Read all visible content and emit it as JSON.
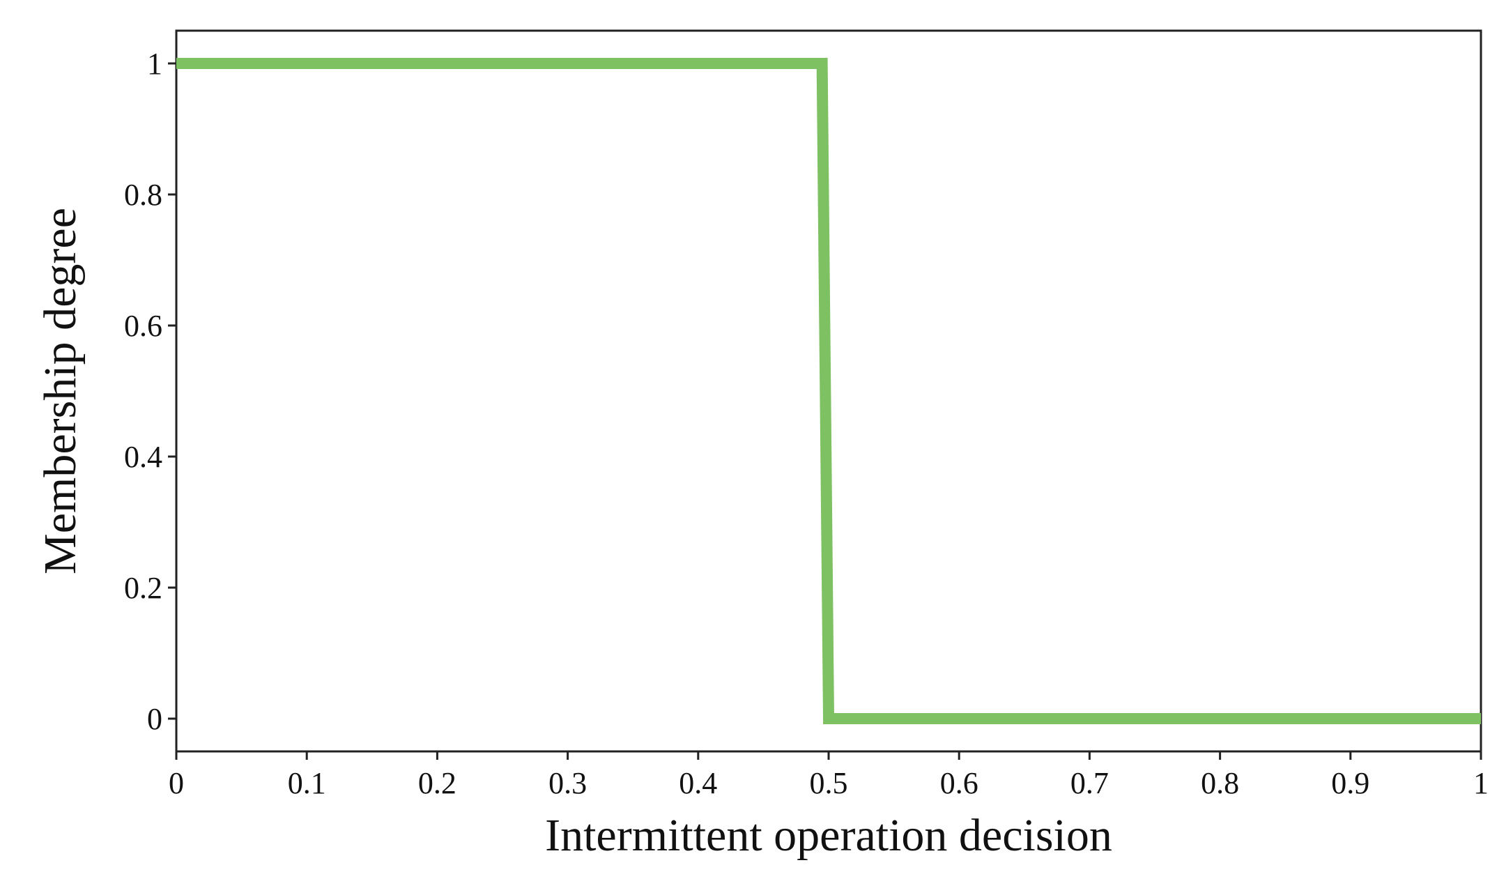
{
  "chart_data": {
    "type": "line",
    "x_label": "Intermittent operation decision",
    "y_label": "Membership degree",
    "x": [
      0,
      0.495,
      0.5,
      1
    ],
    "series": [
      {
        "color": "#7dc163",
        "values": [
          1,
          1,
          0,
          0
        ]
      }
    ],
    "xlim": [
      0,
      1
    ],
    "ylim": [
      -0.05,
      1.05
    ],
    "xticks": [
      0,
      0.1,
      0.2,
      0.3,
      0.4,
      0.5,
      0.6,
      0.7,
      0.8,
      0.9,
      1
    ],
    "yticks": [
      0,
      0.2,
      0.4,
      0.6,
      0.8,
      1
    ],
    "grid": false
  }
}
